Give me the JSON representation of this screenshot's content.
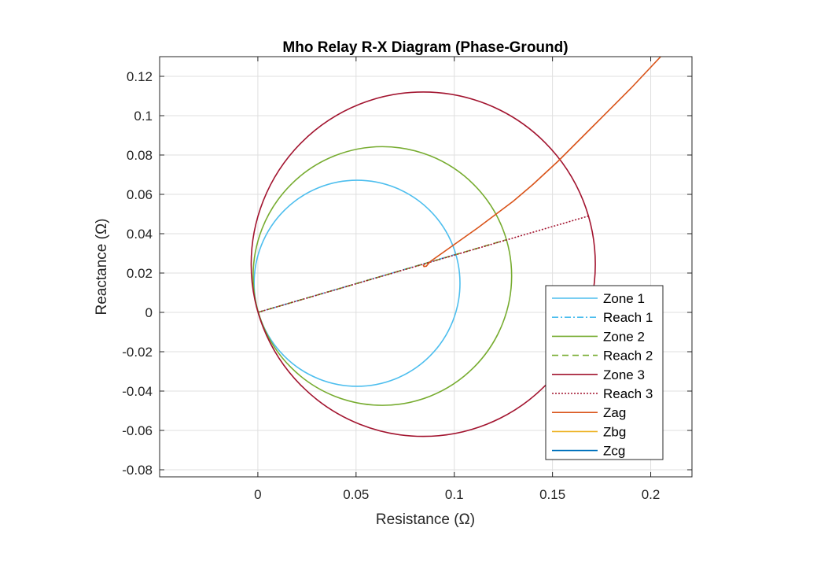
{
  "chart_data": {
    "type": "line",
    "title": "Mho Relay R-X Diagram (Phase-Ground)",
    "xlabel": "Resistance (Ω)",
    "ylabel": "Reactance (Ω)",
    "xlim": [
      -0.05,
      0.221
    ],
    "ylim": [
      -0.0836,
      0.13
    ],
    "xticks": [
      0,
      0.05,
      0.1,
      0.15,
      0.2
    ],
    "xtick_labels": [
      "0",
      "0.05",
      "0.1",
      "0.15",
      "0.2"
    ],
    "yticks": [
      -0.08,
      -0.06,
      -0.04,
      -0.02,
      0,
      0.02,
      0.04,
      0.06,
      0.08,
      0.1,
      0.12
    ],
    "ytick_labels": [
      "-0.08",
      "-0.06",
      "-0.04",
      "-0.02",
      "0",
      "0.02",
      "0.04",
      "0.06",
      "0.08",
      "0.1",
      "0.12"
    ],
    "grid": true,
    "legend_position": "bottom-right",
    "series": [
      {
        "name": "Zone 1",
        "kind": "circle",
        "center": [
          0.0505,
          0.0148
        ],
        "radius": 0.0524,
        "color": "#4DBEEE",
        "style": "solid"
      },
      {
        "name": "Reach 1",
        "kind": "line",
        "x": [
          0,
          0.101
        ],
        "y": [
          0,
          0.0296
        ],
        "color": "#4DBEEE",
        "style": "dashdot"
      },
      {
        "name": "Zone 2",
        "kind": "circle",
        "center": [
          0.0634,
          0.0185
        ],
        "radius": 0.0658,
        "color": "#77AC30",
        "style": "solid"
      },
      {
        "name": "Reach 2",
        "kind": "line",
        "x": [
          0,
          0.1268
        ],
        "y": [
          0,
          0.037
        ],
        "color": "#77AC30",
        "style": "dashed"
      },
      {
        "name": "Zone 3",
        "kind": "circle",
        "center": [
          0.0842,
          0.0245
        ],
        "radius": 0.0876,
        "color": "#A2142F",
        "style": "solid"
      },
      {
        "name": "Reach 3",
        "kind": "line",
        "x": [
          0,
          0.1684
        ],
        "y": [
          0,
          0.049
        ],
        "color": "#A2142F",
        "style": "dotted"
      },
      {
        "name": "Zag",
        "kind": "line",
        "x": [
          0.0848,
          0.0843,
          0.0846,
          0.0858,
          0.087,
          0.088,
          0.1,
          0.112,
          0.12,
          0.13,
          0.14,
          0.153,
          0.17,
          0.19,
          0.206
        ],
        "y": [
          0.0245,
          0.0238,
          0.0233,
          0.0235,
          0.025,
          0.026,
          0.0345,
          0.043,
          0.049,
          0.0565,
          0.065,
          0.077,
          0.094,
          0.114,
          0.131
        ],
        "color": "#D95319",
        "style": "solid"
      },
      {
        "name": "Zbg",
        "kind": "line",
        "x": [],
        "y": [],
        "color": "#EDB120",
        "style": "solid"
      },
      {
        "name": "Zcg",
        "kind": "line",
        "x": [],
        "y": [],
        "color": "#0072BD",
        "style": "solid"
      }
    ]
  }
}
